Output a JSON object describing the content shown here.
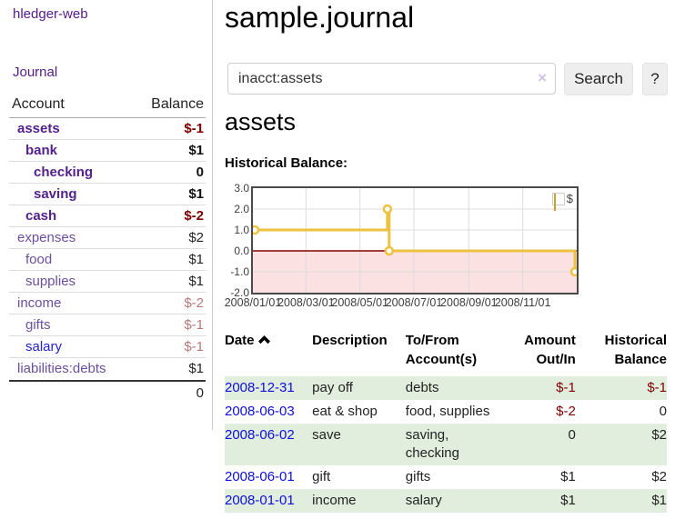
{
  "colors": {
    "link_purple": "#551a8b",
    "link_blue": "#0000ee",
    "negative_dark": "#800000",
    "negative_muted": "#b97979",
    "row_green": "#e2eedd",
    "series_gold": "#edc240"
  },
  "sidebar": {
    "brand": "hledger-web",
    "journal_link": "Journal",
    "accounts": {
      "headers": {
        "account": "Account",
        "balance": "Balance"
      },
      "rows": [
        {
          "name": "assets",
          "indent": 1,
          "bold": true,
          "balance": "$-1",
          "neg": true
        },
        {
          "name": "bank",
          "indent": 2,
          "bold": true,
          "balance": "$1"
        },
        {
          "name": "checking",
          "indent": 3,
          "bold": true,
          "balance": "0"
        },
        {
          "name": "saving",
          "indent": 3,
          "bold": true,
          "balance": "$1"
        },
        {
          "name": "cash",
          "indent": 2,
          "bold": true,
          "balance": "$-2",
          "neg": true
        },
        {
          "name": "expenses",
          "indent": 1,
          "bold": false,
          "balance": "$2"
        },
        {
          "name": "food",
          "indent": 2,
          "bold": false,
          "balance": "$1"
        },
        {
          "name": "supplies",
          "indent": 2,
          "bold": false,
          "balance": "$1"
        },
        {
          "name": "income",
          "indent": 1,
          "bold": false,
          "balance": "$-2",
          "neg": true
        },
        {
          "name": "gifts",
          "indent": 2,
          "bold": false,
          "balance": "$-1",
          "neg": true
        },
        {
          "name": "salary",
          "indent": 2,
          "bold": false,
          "balance": "$-1",
          "neg": true,
          "blue": true
        },
        {
          "name": "liabilities:debts",
          "indent": 1,
          "bold": false,
          "balance": "$1"
        }
      ],
      "total": "0"
    }
  },
  "main": {
    "title": "sample.journal",
    "search": {
      "value": "inacct:assets",
      "clear_icon": "×",
      "button_label": "Search",
      "help_label": "?"
    },
    "account_heading": "assets",
    "chart_title": "Historical Balance:"
  },
  "chart_data": {
    "type": "line",
    "line_style": "step",
    "title": "Historical Balance",
    "legend": {
      "position": "top-right",
      "label": "$"
    },
    "series": [
      {
        "name": "$",
        "color": "#edc240",
        "points": [
          [
            "2008/01/01",
            1
          ],
          [
            "2008/06/01",
            2
          ],
          [
            "2008/06/03",
            0
          ],
          [
            "2008/12/31",
            -1
          ]
        ]
      }
    ],
    "ylim": [
      -2,
      3
    ],
    "yticks": [
      3.0,
      2.0,
      1.0,
      0.0,
      -1.0,
      -2.0
    ],
    "xlim": [
      "2008/01/01",
      "2009/01/01"
    ],
    "xticks": [
      "2008/01/01",
      "2008/03/01",
      "2008/05/01",
      "2008/07/01",
      "2008/09/01",
      "2008/11/01"
    ],
    "grid": true,
    "negative_region_color": "#fbe1e1",
    "zero_line_color": "#8b0000"
  },
  "register_table": {
    "headers": [
      {
        "line1": "Date",
        "line2": "",
        "align": "left",
        "sorted_asc": true
      },
      {
        "line1": "Description",
        "line2": "",
        "align": "left"
      },
      {
        "line1": "To/From",
        "line2": "Account(s)",
        "align": "left"
      },
      {
        "line1": "Amount",
        "line2": "Out/In",
        "align": "right"
      },
      {
        "line1": "Historical",
        "line2": "Balance",
        "align": "right"
      }
    ],
    "rows": [
      {
        "date": "2008-12-31",
        "description": "pay off",
        "accounts": [
          "debts"
        ],
        "amount": "$-1",
        "amount_neg": true,
        "balance": "$-1",
        "balance_neg": true,
        "shaded": true
      },
      {
        "date": "2008-06-03",
        "description": "eat & shop",
        "accounts": [
          "food, supplies"
        ],
        "amount": "$-2",
        "amount_neg": true,
        "balance": "0",
        "balance_neg": false,
        "shaded": false
      },
      {
        "date": "2008-06-02",
        "description": "save",
        "accounts": [
          "saving,",
          "checking"
        ],
        "amount": "0",
        "amount_neg": false,
        "balance": "$2",
        "balance_neg": false,
        "shaded": true
      },
      {
        "date": "2008-06-01",
        "description": "gift",
        "accounts": [
          "gifts"
        ],
        "amount": "$1",
        "amount_neg": false,
        "balance": "$2",
        "balance_neg": false,
        "shaded": false
      },
      {
        "date": "2008-01-01",
        "description": "income",
        "accounts": [
          "salary"
        ],
        "amount": "$1",
        "amount_neg": false,
        "balance": "$1",
        "balance_neg": false,
        "shaded": true
      }
    ]
  }
}
